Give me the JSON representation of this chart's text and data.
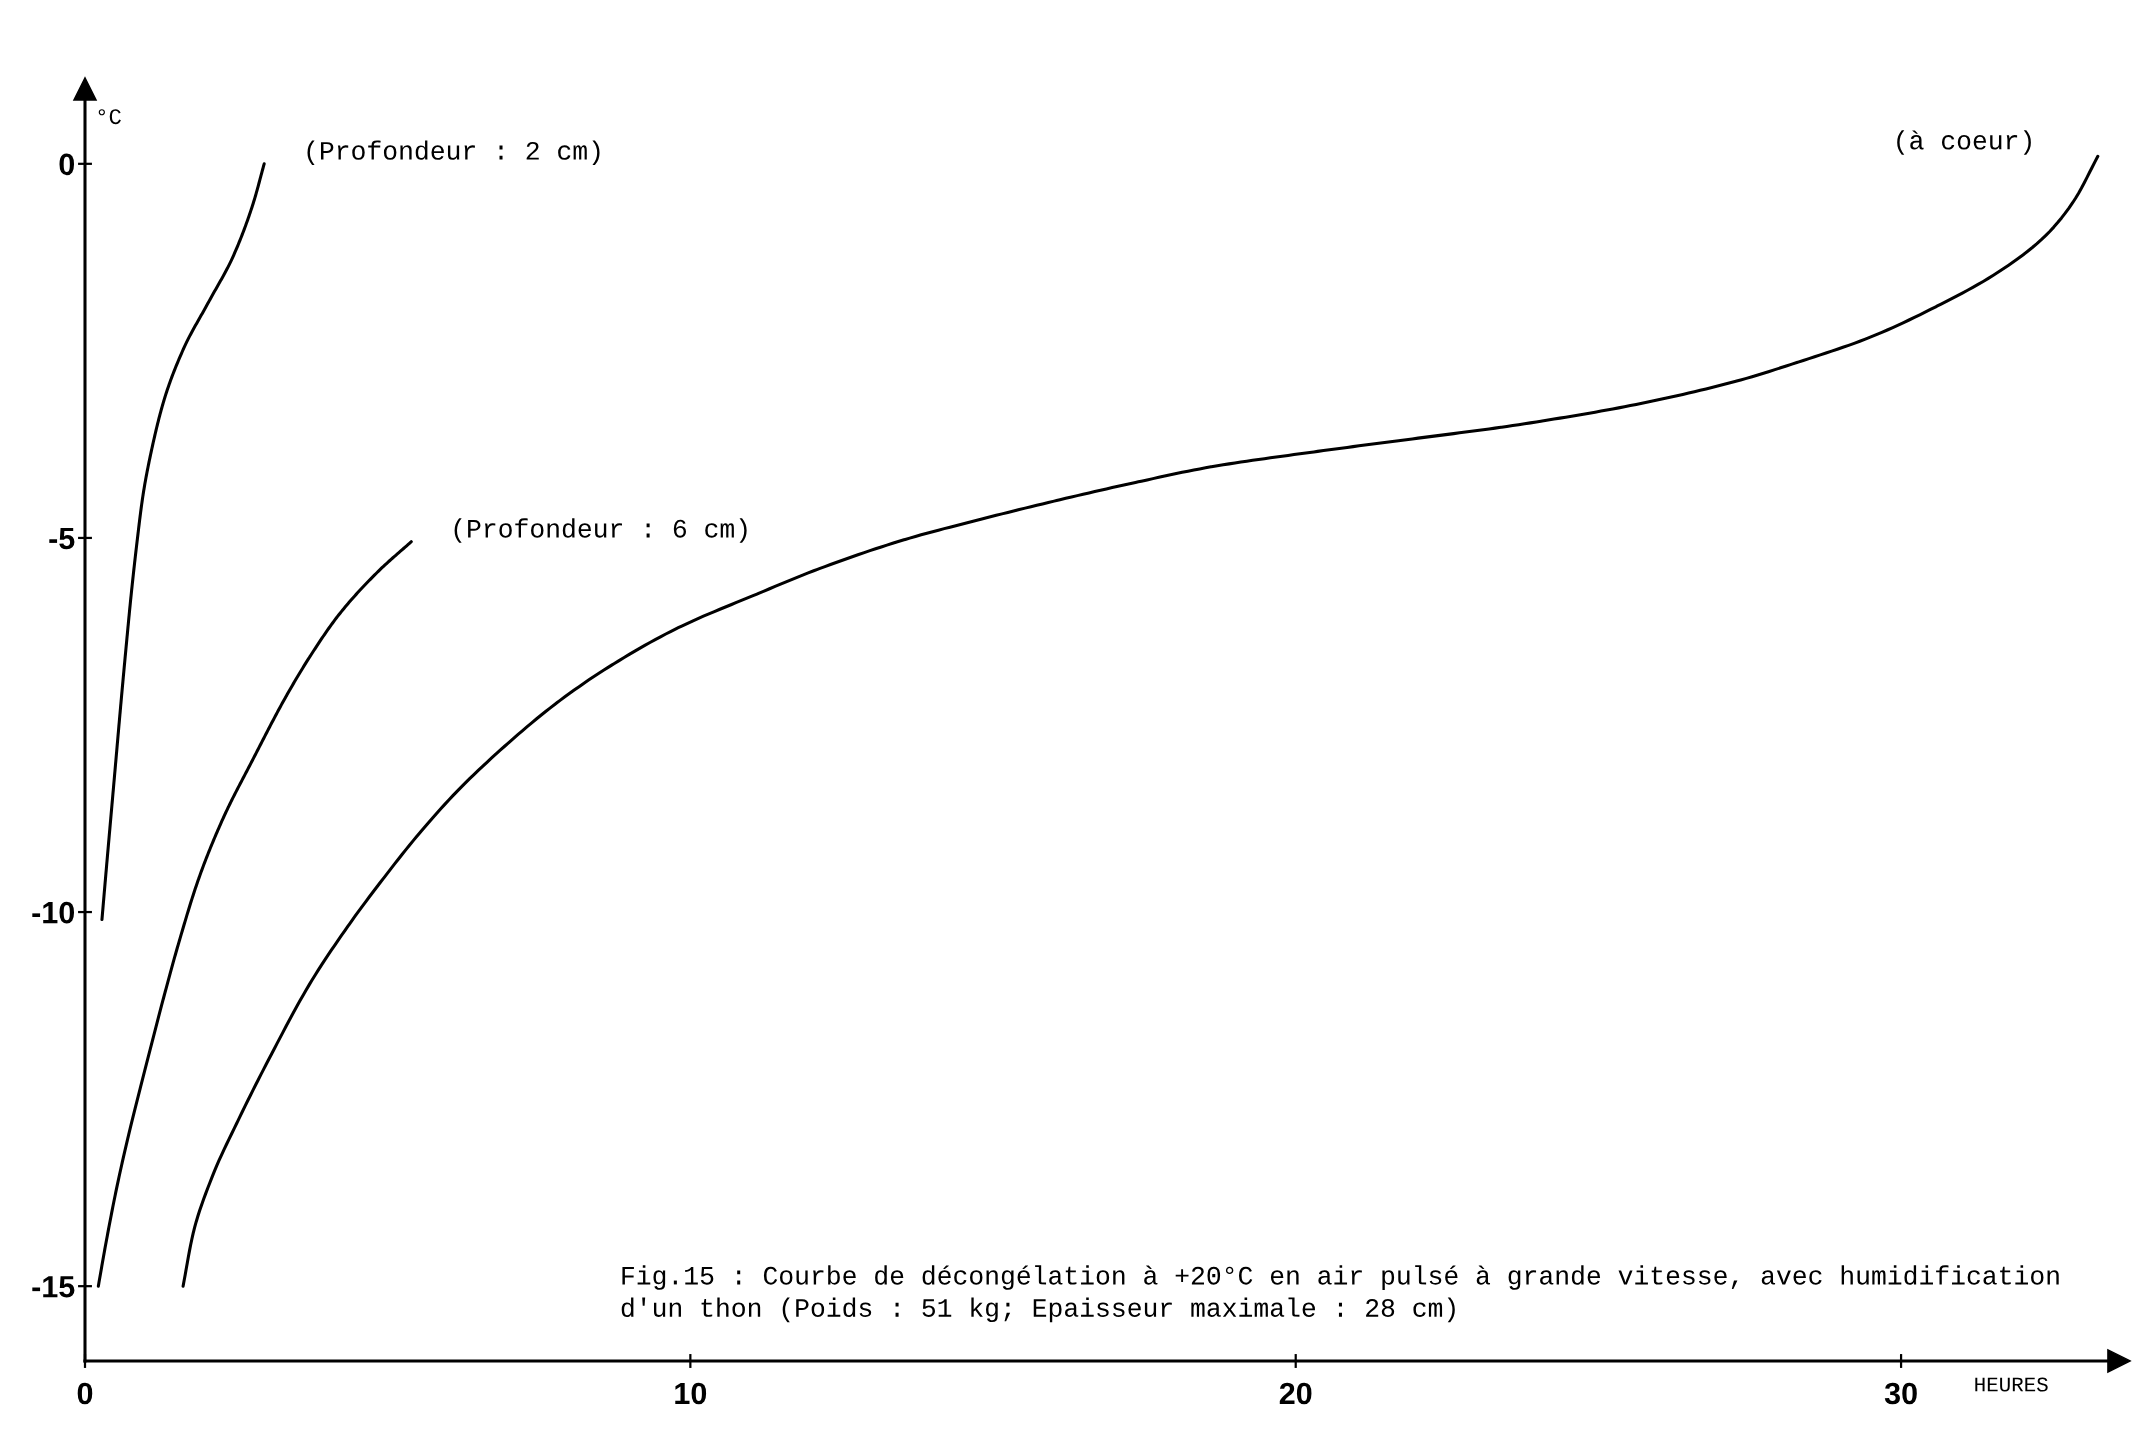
{
  "chart_data": {
    "type": "line",
    "title": "Fig.15 : Courbe de décongélation à +20°C en air pulsé à grande vitesse, avec humidification\nd'un thon (Poids : 51 kg; Epaisseur maximale : 28 cm)",
    "xlabel": "HEURES",
    "ylabel": "°C",
    "xlim": [
      0,
      33.6
    ],
    "ylim": [
      -16,
      1
    ],
    "xticks": [
      0,
      10,
      20,
      30
    ],
    "yticks": [
      0,
      -5,
      -10,
      -15
    ],
    "line_style": "solid",
    "series": [
      {
        "name": "(Profondeur : 2 cm)",
        "color": "#000000",
        "x": [
          0.28,
          0.36,
          0.48,
          0.6,
          0.68,
          0.76,
          0.86,
          0.96,
          1.12,
          1.32,
          1.64,
          2.04,
          2.44,
          2.77,
          2.96
        ],
        "values": [
          -10.1,
          -9.35,
          -8.25,
          -7.15,
          -6.45,
          -5.78,
          -5.05,
          -4.42,
          -3.75,
          -3.12,
          -2.45,
          -1.85,
          -1.25,
          -0.55,
          0
        ]
      },
      {
        "name": "(Profondeur : 6 cm)",
        "color": "#000000",
        "x": [
          0.22,
          0.34,
          0.52,
          0.72,
          0.92,
          1.12,
          1.32,
          1.56,
          1.88,
          2.28,
          2.78,
          3.32,
          3.72,
          4.2,
          4.84,
          5.39
        ],
        "values": [
          -15,
          -14.45,
          -13.7,
          -12.98,
          -12.33,
          -11.7,
          -11.08,
          -10.38,
          -9.55,
          -8.75,
          -7.95,
          -7.12,
          -6.58,
          -6.02,
          -5.45,
          -5.05
        ]
      },
      {
        "name": "(à coeur)",
        "color": "#000000",
        "x": [
          1.62,
          1.8,
          2.12,
          2.52,
          3.08,
          3.72,
          4.36,
          4.93,
          5.49,
          6.13,
          6.8,
          7.8,
          8.7,
          9.8,
          11.1,
          12.1,
          13.55,
          14.8,
          16.05,
          17.4,
          18.6,
          20.3,
          21.7,
          23.4,
          24.05,
          25.6,
          27.3,
          28.3,
          29.45,
          30.6,
          31.6,
          32.4,
          32.85,
          33.25
        ],
        "values": [
          -15,
          -14.25,
          -13.5,
          -12.8,
          -11.9,
          -10.95,
          -10.17,
          -9.55,
          -8.98,
          -8.4,
          -7.88,
          -7.2,
          -6.7,
          -6.2,
          -5.75,
          -5.42,
          -5.02,
          -4.75,
          -4.5,
          -4.25,
          -4.05,
          -3.85,
          -3.7,
          -3.52,
          -3.44,
          -3.22,
          -2.9,
          -2.65,
          -2.33,
          -1.9,
          -1.45,
          -0.95,
          -0.5,
          0.1
        ]
      }
    ]
  }
}
